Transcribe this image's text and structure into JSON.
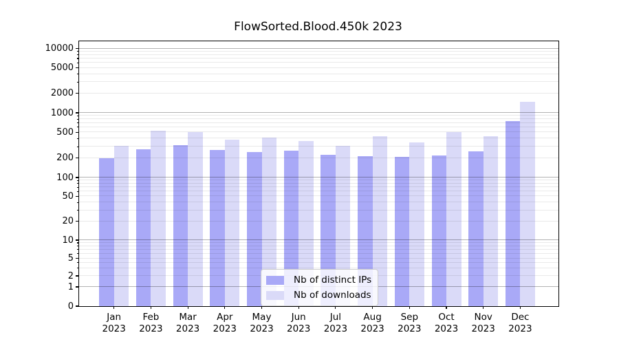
{
  "title": "FlowSorted.Blood.450k 2023",
  "chart_data": {
    "type": "bar",
    "title": "FlowSorted.Blood.450k 2023",
    "y_scale": "symlog",
    "grid": true,
    "legend_position": "lower-center-inside",
    "categories": [
      "Jan",
      "Feb",
      "Mar",
      "Apr",
      "May",
      "Jun",
      "Jul",
      "Aug",
      "Sep",
      "Oct",
      "Nov",
      "Dec"
    ],
    "category_year": "2023",
    "series": [
      {
        "name": "Nb of distinct IPs",
        "color": "#a9a9f7",
        "values": [
          200,
          270,
          320,
          265,
          250,
          260,
          225,
          215,
          210,
          220,
          255,
          750
        ]
      },
      {
        "name": "Nb of downloads",
        "color": "#dadaf8",
        "values": [
          310,
          530,
          510,
          385,
          415,
          365,
          310,
          430,
          350,
          500,
          435,
          1480
        ]
      }
    ],
    "y_ticks": [
      0,
      1,
      2,
      5,
      10,
      20,
      50,
      100,
      200,
      500,
      1000,
      2000,
      5000,
      10000
    ],
    "ylim": [
      0,
      13000
    ],
    "xlabel": "",
    "ylabel": ""
  },
  "colors": {
    "background": "#ffffff",
    "axis": "#000000",
    "grid_major": "#b2b2b2",
    "grid_minor": "#e9e9e9",
    "legend_border": "#cccccc",
    "legend_background": "rgba(255,255,255,0.8)",
    "text": "#000000"
  }
}
